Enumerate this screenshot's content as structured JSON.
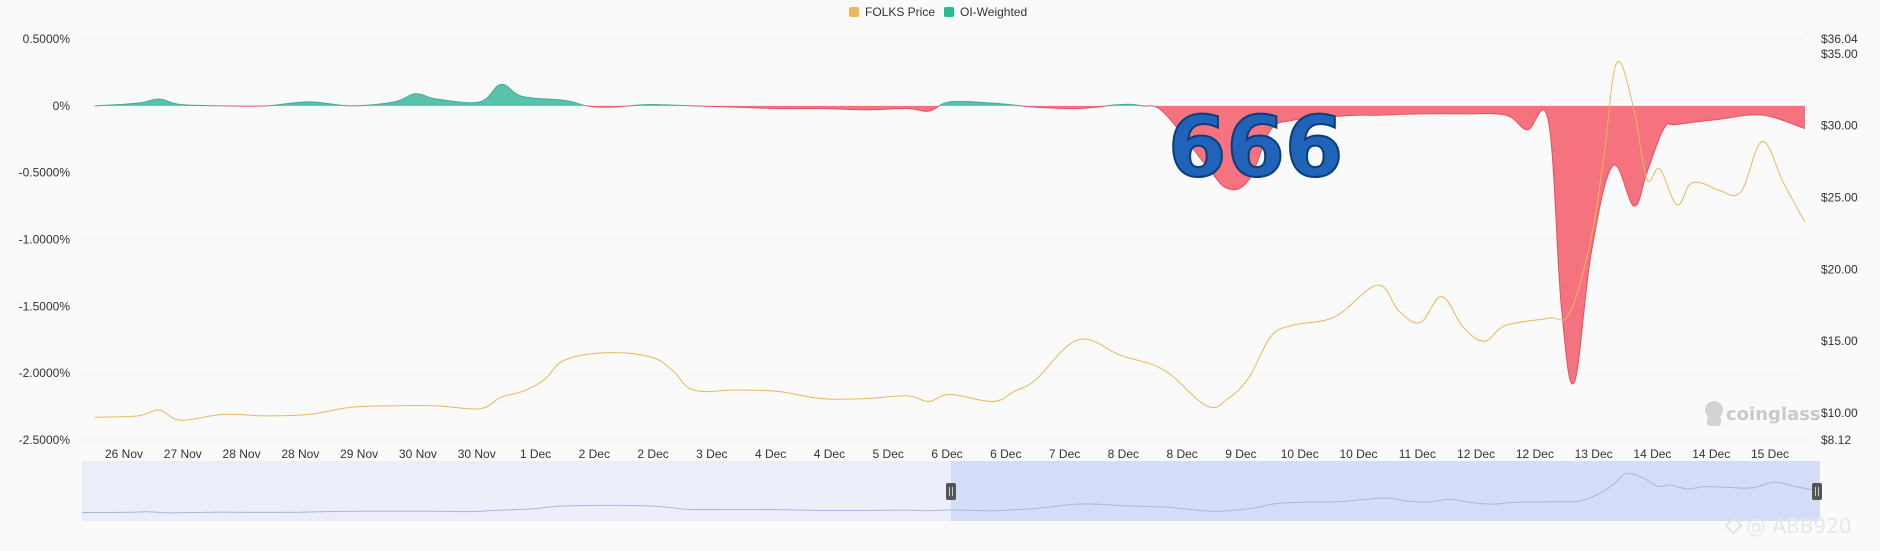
{
  "chart_data": {
    "type": "area",
    "legend": {
      "placement": "top-center",
      "items": [
        {
          "name": "FOLKS Price",
          "color": "#e9b85a"
        },
        {
          "name": "OI-Weighted",
          "color": "#1fbf8f"
        }
      ]
    },
    "left_axis": {
      "ticks": [
        "0.5000%",
        "0%",
        "-0.5000%",
        "-1.0000%",
        "-1.5000%",
        "-2.0000%",
        "-2.5000%"
      ],
      "tick_values": [
        0.5,
        0,
        -0.5,
        -1.0,
        -1.5,
        -2.0,
        -2.5
      ],
      "ylim": [
        -2.5,
        0.5
      ]
    },
    "right_axis": {
      "ticks": [
        "$36.04",
        "$35.00",
        "$30.00",
        "$25.00",
        "$20.00",
        "$15.00",
        "$10.00",
        "$8.12"
      ],
      "tick_values": [
        36.04,
        35,
        30,
        25,
        20,
        15,
        10,
        8.12
      ],
      "ylim": [
        8.12,
        36.04
      ]
    },
    "x_axis": {
      "labels": [
        "26 Nov",
        "27 Nov",
        "28 Nov",
        "28 Nov",
        "29 Nov",
        "30 Nov",
        "30 Nov",
        "1 Dec",
        "2 Dec",
        "2 Dec",
        "3 Dec",
        "4 Dec",
        "4 Dec",
        "5 Dec",
        "6 Dec",
        "6 Dec",
        "7 Dec",
        "8 Dec",
        "8 Dec",
        "9 Dec",
        "10 Dec",
        "10 Dec",
        "11 Dec",
        "12 Dec",
        "12 Dec",
        "13 Dec",
        "14 Dec",
        "14 Dec",
        "15 Dec"
      ],
      "range": [
        0,
        40
      ]
    },
    "series": [
      {
        "name": "OI-Weighted",
        "axis": "left",
        "positive_color": "#5ac2ac",
        "negative_color": "#f4737e",
        "x": [
          0,
          1,
          1.5,
          2,
          3,
          4,
          5,
          6,
          7,
          7.5,
          8,
          9,
          9.5,
          10,
          11,
          11.5,
          12,
          12.5,
          13,
          14,
          15,
          16,
          17,
          18,
          19,
          19.5,
          20,
          21,
          22,
          23,
          24,
          24.5,
          25,
          26,
          26.5,
          27,
          27.5,
          28,
          28.5,
          29,
          29.5,
          30,
          31,
          32,
          33,
          33.5,
          34,
          34.3,
          34.6,
          35,
          35.5,
          36,
          36.3,
          36.7,
          37,
          38,
          39,
          40
        ],
        "values": [
          0,
          0.02,
          0.05,
          0.01,
          0,
          0,
          0.03,
          0,
          0.03,
          0.09,
          0.05,
          0.03,
          0.16,
          0.07,
          0.04,
          0,
          -0.01,
          0,
          0.01,
          0,
          -0.01,
          -0.02,
          -0.02,
          -0.03,
          -0.02,
          -0.04,
          0.03,
          0.02,
          -0.01,
          -0.02,
          0.01,
          0,
          -0.05,
          -0.45,
          -0.62,
          -0.55,
          -0.18,
          -0.11,
          -0.09,
          -0.08,
          -0.07,
          -0.07,
          -0.06,
          -0.06,
          -0.07,
          -0.18,
          -0.12,
          -1.5,
          -2.07,
          -1.1,
          -0.45,
          -0.75,
          -0.5,
          -0.17,
          -0.14,
          -0.1,
          -0.07,
          -0.17
        ]
      },
      {
        "name": "FOLKS Price",
        "axis": "right",
        "color": "#e9b85a",
        "x": [
          0,
          1,
          1.5,
          2,
          3,
          4,
          5,
          6,
          7,
          8,
          9,
          9.5,
          10,
          10.5,
          11,
          12,
          13,
          13.5,
          14,
          15,
          16,
          17,
          18,
          19,
          19.5,
          20,
          21,
          21.5,
          22,
          23,
          24,
          25,
          26,
          26.5,
          27,
          27.5,
          28,
          29,
          30,
          30.5,
          31,
          31.5,
          32,
          32.5,
          33,
          34,
          34.5,
          35,
          35.3,
          35.6,
          36,
          36.3,
          36.6,
          37,
          37.3,
          37.6,
          38,
          38.5,
          39,
          39.5,
          40
        ],
        "values": [
          9.7,
          9.8,
          10.2,
          9.5,
          9.9,
          9.8,
          9.9,
          10.4,
          10.5,
          10.5,
          10.3,
          11.1,
          11.5,
          12.3,
          13.7,
          14.2,
          13.9,
          13.0,
          11.6,
          11.6,
          11.5,
          11.0,
          11.0,
          11.2,
          10.8,
          11.3,
          10.8,
          11.5,
          12.3,
          15.1,
          14.0,
          13.0,
          10.5,
          11.0,
          12.5,
          15.3,
          16.1,
          16.7,
          18.9,
          17.1,
          16.3,
          18.1,
          16.0,
          15.0,
          16.1,
          16.6,
          17.0,
          22.2,
          28.0,
          34.4,
          31.1,
          26.3,
          27.0,
          24.5,
          25.9,
          26.0,
          25.5,
          25.4,
          28.9,
          26.0,
          23.3
        ]
      }
    ]
  },
  "overlay": {
    "text": "666"
  },
  "watermarks": {
    "brand": "coinglass",
    "handle": "@ ABB920"
  }
}
